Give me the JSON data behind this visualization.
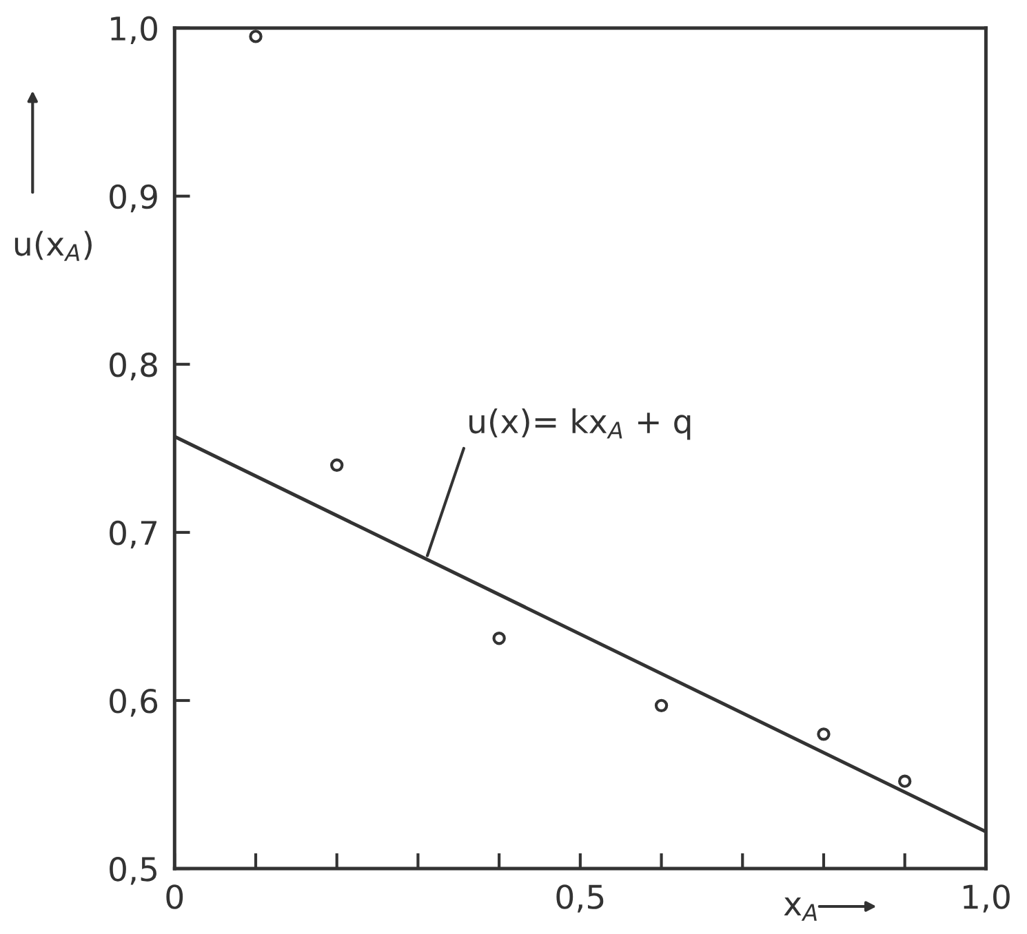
{
  "chart_data": {
    "type": "scatter",
    "xlabel": "x$_{A}$",
    "ylabel": "u(x$_{A}$)",
    "xlim": [
      0,
      1.0
    ],
    "ylim": [
      0.5,
      1.0
    ],
    "xticks": [
      0,
      {
        "value": 0.1,
        "label": null
      },
      {
        "value": 0.2,
        "label": null
      },
      {
        "value": 0.3,
        "label": null
      },
      {
        "value": 0.4,
        "label": null
      },
      {
        "value": 0.5,
        "label": "0,5"
      },
      {
        "value": 0.6,
        "label": null
      },
      {
        "value": 0.7,
        "label": null
      },
      {
        "value": 0.8,
        "label": null
      },
      {
        "value": 0.9,
        "label": null
      },
      {
        "value": 1.0,
        "label": "1,0"
      }
    ],
    "yticks": [
      {
        "value": 0.5,
        "label": "0,5"
      },
      {
        "value": 0.6,
        "label": "0,6"
      },
      {
        "value": 0.7,
        "label": "0,7"
      },
      {
        "value": 0.8,
        "label": "0,8"
      },
      {
        "value": 0.9,
        "label": "0,9"
      },
      {
        "value": 1.0,
        "label": "1,0"
      }
    ],
    "grid": false,
    "legend": false,
    "series": [
      {
        "color": "#333333",
        "marker": "circle",
        "x": [
          0.1,
          0.2,
          0.4,
          0.6,
          0.8,
          0.9
        ],
        "values": [
          0.995,
          0.74,
          0.637,
          0.597,
          0.58,
          0.552
        ]
      },
      {
        "type": "line",
        "color": "#333333",
        "line_style": "solid",
        "marker": "none",
        "x": [
          0,
          1.0
        ],
        "values": [
          0.757,
          0.522
        ]
      }
    ],
    "annotations": [
      {
        "text": "u(x)= kx$_{A}$ + q",
        "x": 0.31,
        "y": 0.684
      }
    ]
  }
}
